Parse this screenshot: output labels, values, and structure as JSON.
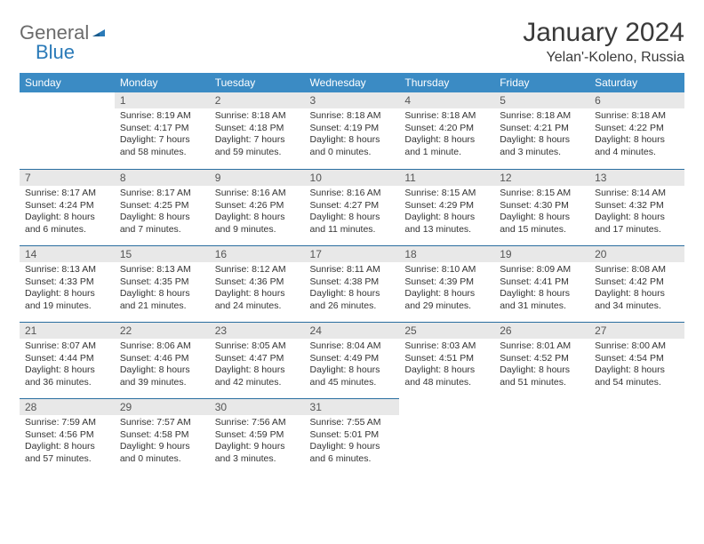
{
  "logo": {
    "text1": "General",
    "text2": "Blue"
  },
  "title": "January 2024",
  "location": "Yelan'-Koleno, Russia",
  "colors": {
    "header_bg": "#3b8bc4",
    "header_text": "#ffffff",
    "daynum_bg": "#e8e8e8",
    "cell_border": "#2a6ea0",
    "logo_gray": "#6b6b6b",
    "logo_blue": "#2a7ab8"
  },
  "weekdays": [
    "Sunday",
    "Monday",
    "Tuesday",
    "Wednesday",
    "Thursday",
    "Friday",
    "Saturday"
  ],
  "first_day_index": 1,
  "days": [
    {
      "n": 1,
      "sunrise": "8:19 AM",
      "sunset": "4:17 PM",
      "daylight": "7 hours and 58 minutes."
    },
    {
      "n": 2,
      "sunrise": "8:18 AM",
      "sunset": "4:18 PM",
      "daylight": "7 hours and 59 minutes."
    },
    {
      "n": 3,
      "sunrise": "8:18 AM",
      "sunset": "4:19 PM",
      "daylight": "8 hours and 0 minutes."
    },
    {
      "n": 4,
      "sunrise": "8:18 AM",
      "sunset": "4:20 PM",
      "daylight": "8 hours and 1 minute."
    },
    {
      "n": 5,
      "sunrise": "8:18 AM",
      "sunset": "4:21 PM",
      "daylight": "8 hours and 3 minutes."
    },
    {
      "n": 6,
      "sunrise": "8:18 AM",
      "sunset": "4:22 PM",
      "daylight": "8 hours and 4 minutes."
    },
    {
      "n": 7,
      "sunrise": "8:17 AM",
      "sunset": "4:24 PM",
      "daylight": "8 hours and 6 minutes."
    },
    {
      "n": 8,
      "sunrise": "8:17 AM",
      "sunset": "4:25 PM",
      "daylight": "8 hours and 7 minutes."
    },
    {
      "n": 9,
      "sunrise": "8:16 AM",
      "sunset": "4:26 PM",
      "daylight": "8 hours and 9 minutes."
    },
    {
      "n": 10,
      "sunrise": "8:16 AM",
      "sunset": "4:27 PM",
      "daylight": "8 hours and 11 minutes."
    },
    {
      "n": 11,
      "sunrise": "8:15 AM",
      "sunset": "4:29 PM",
      "daylight": "8 hours and 13 minutes."
    },
    {
      "n": 12,
      "sunrise": "8:15 AM",
      "sunset": "4:30 PM",
      "daylight": "8 hours and 15 minutes."
    },
    {
      "n": 13,
      "sunrise": "8:14 AM",
      "sunset": "4:32 PM",
      "daylight": "8 hours and 17 minutes."
    },
    {
      "n": 14,
      "sunrise": "8:13 AM",
      "sunset": "4:33 PM",
      "daylight": "8 hours and 19 minutes."
    },
    {
      "n": 15,
      "sunrise": "8:13 AM",
      "sunset": "4:35 PM",
      "daylight": "8 hours and 21 minutes."
    },
    {
      "n": 16,
      "sunrise": "8:12 AM",
      "sunset": "4:36 PM",
      "daylight": "8 hours and 24 minutes."
    },
    {
      "n": 17,
      "sunrise": "8:11 AM",
      "sunset": "4:38 PM",
      "daylight": "8 hours and 26 minutes."
    },
    {
      "n": 18,
      "sunrise": "8:10 AM",
      "sunset": "4:39 PM",
      "daylight": "8 hours and 29 minutes."
    },
    {
      "n": 19,
      "sunrise": "8:09 AM",
      "sunset": "4:41 PM",
      "daylight": "8 hours and 31 minutes."
    },
    {
      "n": 20,
      "sunrise": "8:08 AM",
      "sunset": "4:42 PM",
      "daylight": "8 hours and 34 minutes."
    },
    {
      "n": 21,
      "sunrise": "8:07 AM",
      "sunset": "4:44 PM",
      "daylight": "8 hours and 36 minutes."
    },
    {
      "n": 22,
      "sunrise": "8:06 AM",
      "sunset": "4:46 PM",
      "daylight": "8 hours and 39 minutes."
    },
    {
      "n": 23,
      "sunrise": "8:05 AM",
      "sunset": "4:47 PM",
      "daylight": "8 hours and 42 minutes."
    },
    {
      "n": 24,
      "sunrise": "8:04 AM",
      "sunset": "4:49 PM",
      "daylight": "8 hours and 45 minutes."
    },
    {
      "n": 25,
      "sunrise": "8:03 AM",
      "sunset": "4:51 PM",
      "daylight": "8 hours and 48 minutes."
    },
    {
      "n": 26,
      "sunrise": "8:01 AM",
      "sunset": "4:52 PM",
      "daylight": "8 hours and 51 minutes."
    },
    {
      "n": 27,
      "sunrise": "8:00 AM",
      "sunset": "4:54 PM",
      "daylight": "8 hours and 54 minutes."
    },
    {
      "n": 28,
      "sunrise": "7:59 AM",
      "sunset": "4:56 PM",
      "daylight": "8 hours and 57 minutes."
    },
    {
      "n": 29,
      "sunrise": "7:57 AM",
      "sunset": "4:58 PM",
      "daylight": "9 hours and 0 minutes."
    },
    {
      "n": 30,
      "sunrise": "7:56 AM",
      "sunset": "4:59 PM",
      "daylight": "9 hours and 3 minutes."
    },
    {
      "n": 31,
      "sunrise": "7:55 AM",
      "sunset": "5:01 PM",
      "daylight": "9 hours and 6 minutes."
    }
  ],
  "labels": {
    "sunrise": "Sunrise:",
    "sunset": "Sunset:",
    "daylight": "Daylight:"
  }
}
